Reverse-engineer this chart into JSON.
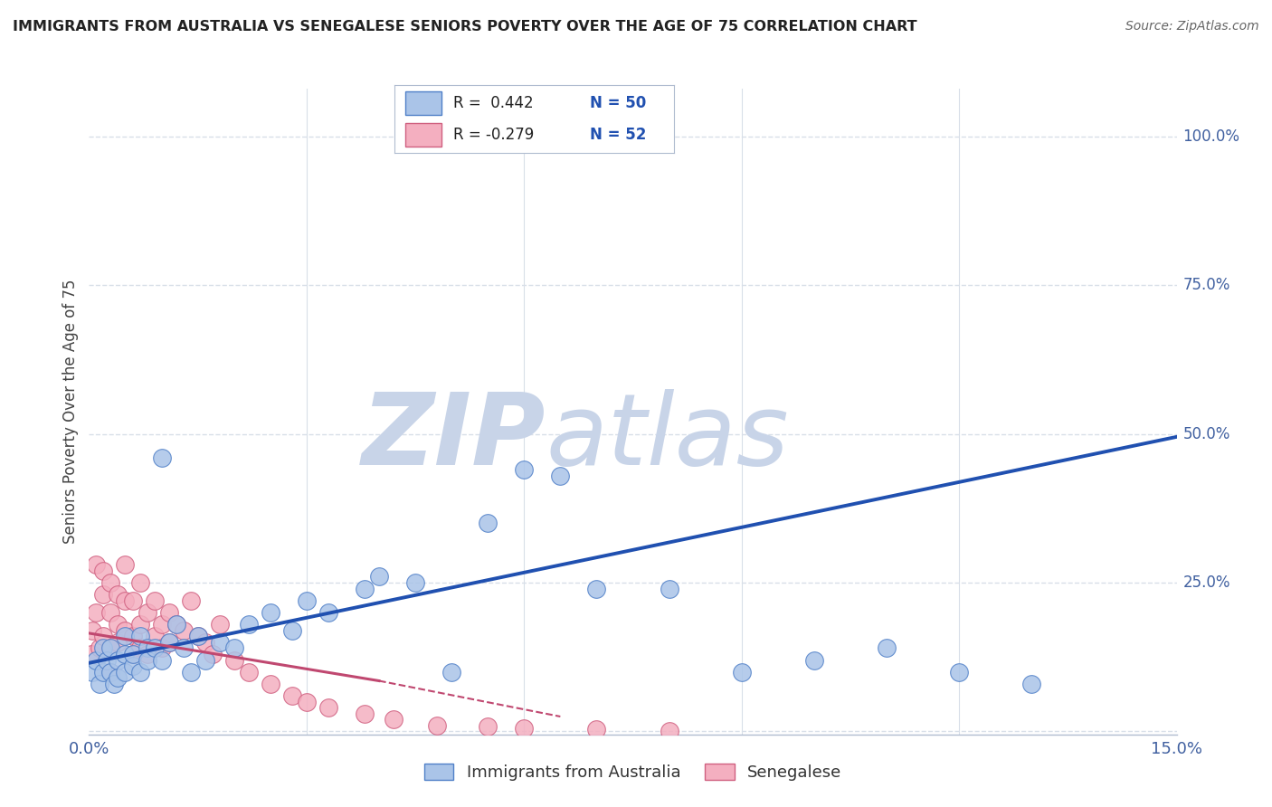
{
  "title": "IMMIGRANTS FROM AUSTRALIA VS SENEGALESE SENIORS POVERTY OVER THE AGE OF 75 CORRELATION CHART",
  "source": "Source: ZipAtlas.com",
  "ylabel": "Seniors Poverty Over the Age of 75",
  "xlim": [
    0.0,
    0.15
  ],
  "ylim": [
    -0.005,
    1.08
  ],
  "xticks": [
    0.0,
    0.03,
    0.06,
    0.09,
    0.12,
    0.15
  ],
  "yticks": [
    0.0,
    0.25,
    0.5,
    0.75,
    1.0
  ],
  "ytick_labels_right": [
    "",
    "25.0%",
    "50.0%",
    "75.0%",
    "100.0%"
  ],
  "xtick_labels": [
    "0.0%",
    "",
    "",
    "",
    "",
    "15.0%"
  ],
  "blue_color": "#aac4e8",
  "pink_color": "#f4afc0",
  "blue_edge_color": "#5080c8",
  "pink_edge_color": "#d06080",
  "blue_line_color": "#2050b0",
  "pink_line_color": "#c04870",
  "watermark_zip": "ZIP",
  "watermark_atlas": "atlas",
  "watermark_color_zip": "#c8d4e8",
  "watermark_color_atlas": "#c8d4e8",
  "background_color": "#ffffff",
  "grid_color": "#d8dfe8",
  "title_color": "#222222",
  "source_color": "#666666",
  "tick_label_color": "#4060a0",
  "legend_R1": "R =  0.442",
  "legend_N1": "N = 50",
  "legend_R2": "R = -0.279",
  "legend_N2": "N = 52",
  "blue_scatter_x": [
    0.0005,
    0.001,
    0.0015,
    0.002,
    0.002,
    0.0025,
    0.003,
    0.003,
    0.0035,
    0.004,
    0.004,
    0.005,
    0.005,
    0.005,
    0.006,
    0.006,
    0.007,
    0.007,
    0.008,
    0.008,
    0.009,
    0.01,
    0.01,
    0.011,
    0.012,
    0.013,
    0.014,
    0.015,
    0.016,
    0.018,
    0.02,
    0.022,
    0.025,
    0.028,
    0.03,
    0.033,
    0.038,
    0.04,
    0.045,
    0.05,
    0.055,
    0.06,
    0.065,
    0.07,
    0.08,
    0.09,
    0.1,
    0.11,
    0.12,
    0.13
  ],
  "blue_scatter_y": [
    0.1,
    0.12,
    0.08,
    0.14,
    0.1,
    0.12,
    0.1,
    0.14,
    0.08,
    0.12,
    0.09,
    0.13,
    0.1,
    0.16,
    0.11,
    0.13,
    0.16,
    0.1,
    0.14,
    0.12,
    0.14,
    0.46,
    0.12,
    0.15,
    0.18,
    0.14,
    0.1,
    0.16,
    0.12,
    0.15,
    0.14,
    0.18,
    0.2,
    0.17,
    0.22,
    0.2,
    0.24,
    0.26,
    0.25,
    0.1,
    0.35,
    0.44,
    0.43,
    0.24,
    0.24,
    0.1,
    0.12,
    0.14,
    0.1,
    0.08
  ],
  "pink_scatter_x": [
    0.0003,
    0.0005,
    0.001,
    0.001,
    0.0015,
    0.002,
    0.002,
    0.002,
    0.003,
    0.003,
    0.003,
    0.003,
    0.004,
    0.004,
    0.004,
    0.005,
    0.005,
    0.005,
    0.006,
    0.006,
    0.006,
    0.007,
    0.007,
    0.007,
    0.008,
    0.008,
    0.009,
    0.009,
    0.01,
    0.01,
    0.011,
    0.011,
    0.012,
    0.013,
    0.014,
    0.015,
    0.016,
    0.017,
    0.018,
    0.02,
    0.022,
    0.025,
    0.028,
    0.03,
    0.033,
    0.038,
    0.042,
    0.048,
    0.055,
    0.06,
    0.07,
    0.08
  ],
  "pink_scatter_y": [
    0.13,
    0.17,
    0.2,
    0.28,
    0.14,
    0.23,
    0.16,
    0.27,
    0.1,
    0.2,
    0.14,
    0.25,
    0.18,
    0.23,
    0.15,
    0.28,
    0.17,
    0.22,
    0.13,
    0.22,
    0.16,
    0.25,
    0.18,
    0.14,
    0.2,
    0.13,
    0.22,
    0.16,
    0.18,
    0.14,
    0.2,
    0.15,
    0.18,
    0.17,
    0.22,
    0.16,
    0.15,
    0.13,
    0.18,
    0.12,
    0.1,
    0.08,
    0.06,
    0.05,
    0.04,
    0.03,
    0.02,
    0.01,
    0.008,
    0.005,
    0.003,
    0.001
  ]
}
